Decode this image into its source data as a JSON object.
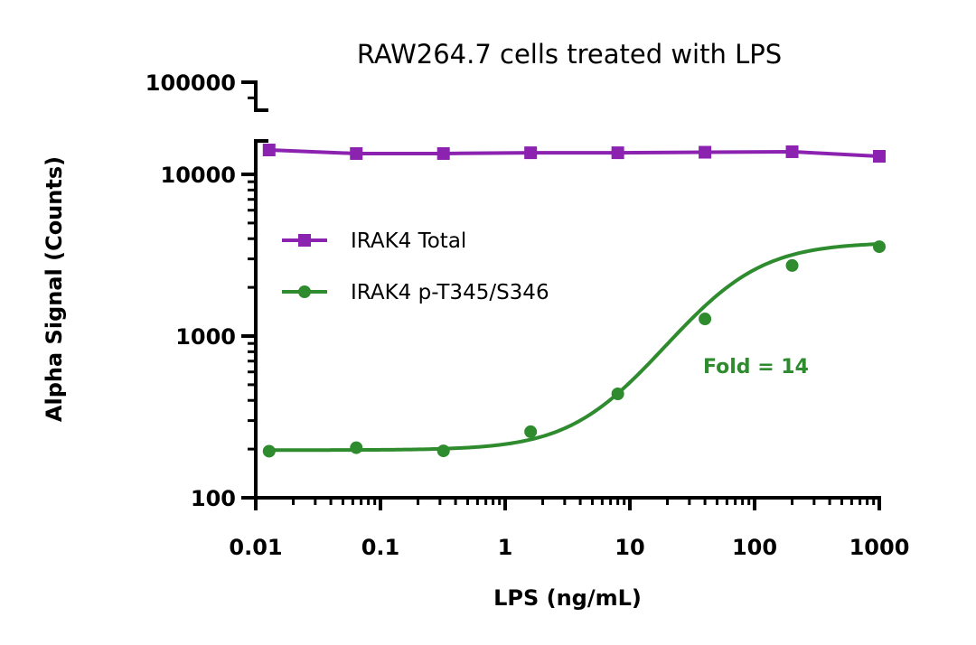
{
  "chart_data": {
    "type": "line",
    "title": "RAW264.7 cells treated with LPS",
    "xlabel": "LPS (ng/mL)",
    "ylabel": "Alpha Signal (Counts)",
    "x_scale": "log",
    "y_scale": "log",
    "xlim": [
      0.01,
      1000
    ],
    "ylim": [
      100,
      100000
    ],
    "y_axis_break": true,
    "x_ticks": [
      "0.01",
      "0.1",
      "1",
      "10",
      "100",
      "1000"
    ],
    "y_ticks": [
      "100",
      "1000",
      "10000",
      "100000"
    ],
    "grid": false,
    "legend_placement": "upper-left",
    "x": [
      0.0128,
      0.064,
      0.32,
      1.6,
      8,
      40,
      200,
      1000
    ],
    "series": [
      {
        "name": "IRAK4 Total",
        "color": "#8B22B0",
        "marker": "square",
        "values": [
          14150,
          13450,
          13450,
          13600,
          13600,
          13700,
          13800,
          12930
        ]
      },
      {
        "name": "IRAK4 p-T345/S346",
        "color": "#2E8B2E",
        "marker": "circle",
        "fit": "sigmoidal curve",
        "values": [
          194,
          204,
          195,
          256,
          439,
          1276,
          2730,
          3570
        ]
      }
    ],
    "annotations": [
      {
        "text": "Fold =  14",
        "color": "#2E8B2E"
      }
    ]
  }
}
